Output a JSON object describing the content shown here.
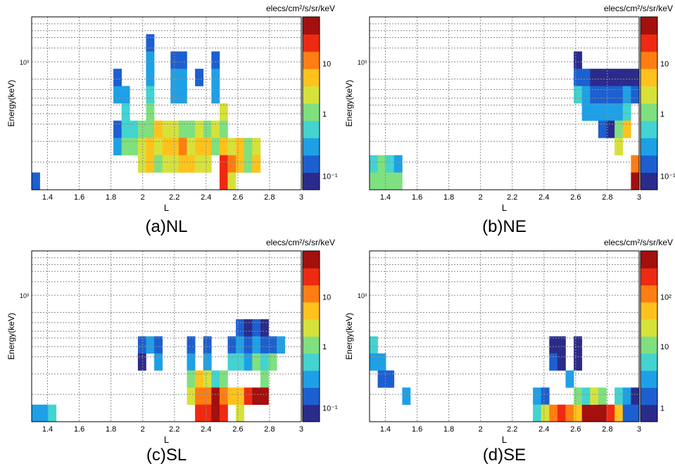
{
  "colors": {
    "grid": "#8c8c8c",
    "frame": "#000000",
    "scale": [
      "#2b2b8c",
      "#1c5fd1",
      "#1ea0e6",
      "#43d3d0",
      "#7fe07f",
      "#d6e23a",
      "#ffc21d",
      "#ff7d13",
      "#ee2a12",
      "#a3100e"
    ]
  },
  "chart_data": [
    {
      "type": "heatmap",
      "caption": "(a)NL",
      "xlabel": "L",
      "ylabel": "Energy(keV)",
      "colorbar_title": "elecs/cm²/s/sr/keV",
      "x_ticks": [
        "1.4",
        "1.6",
        "1.8",
        "2",
        "2.2",
        "2.4",
        "2.6",
        "2.8",
        "3"
      ],
      "y_tick_label": "10³",
      "colorbar_ticks": [
        "10",
        "1",
        "10⁻¹"
      ],
      "cells": [
        [
          0,
          0,
          0.1
        ],
        [
          10,
          3,
          0.15
        ],
        [
          10,
          2,
          0.2
        ],
        [
          10,
          5,
          0.2
        ],
        [
          10,
          6,
          0.15
        ],
        [
          11,
          5,
          0.3
        ],
        [
          11,
          4,
          0.4
        ],
        [
          11,
          3,
          0.6
        ],
        [
          11,
          2,
          1.2
        ],
        [
          12,
          3,
          0.6
        ],
        [
          12,
          2,
          1.5
        ],
        [
          13,
          1,
          2
        ],
        [
          13,
          2,
          3
        ],
        [
          13,
          3,
          1.5
        ],
        [
          14,
          8,
          0.12
        ],
        [
          14,
          7,
          0.2
        ],
        [
          14,
          6,
          0.3
        ],
        [
          14,
          5,
          0.5
        ],
        [
          14,
          4,
          0.8
        ],
        [
          14,
          3,
          1.5
        ],
        [
          14,
          2,
          4
        ],
        [
          14,
          1,
          6
        ],
        [
          15,
          2,
          2
        ],
        [
          15,
          3,
          4
        ],
        [
          15,
          1,
          1.5
        ],
        [
          16,
          3,
          2
        ],
        [
          16,
          2,
          5
        ],
        [
          16,
          1,
          3
        ],
        [
          17,
          7,
          0.15
        ],
        [
          17,
          6,
          0.2
        ],
        [
          17,
          5,
          0.3
        ],
        [
          17,
          3,
          3
        ],
        [
          17,
          2,
          6
        ],
        [
          17,
          1,
          2
        ],
        [
          18,
          7,
          0.12
        ],
        [
          18,
          6,
          0.2
        ],
        [
          18,
          5,
          0.25
        ],
        [
          18,
          3,
          1.5
        ],
        [
          18,
          2,
          8
        ],
        [
          18,
          1,
          4
        ],
        [
          19,
          3,
          1
        ],
        [
          19,
          2,
          3
        ],
        [
          19,
          1,
          6
        ],
        [
          20,
          6,
          0.12
        ],
        [
          20,
          3,
          2
        ],
        [
          20,
          2,
          5
        ],
        [
          20,
          1,
          2
        ],
        [
          21,
          3,
          1.5
        ],
        [
          21,
          2,
          4
        ],
        [
          21,
          1,
          3
        ],
        [
          22,
          7,
          0.15
        ],
        [
          22,
          6,
          0.2
        ],
        [
          22,
          5,
          0.3
        ],
        [
          22,
          3,
          2
        ],
        [
          22,
          2,
          1
        ],
        [
          23,
          4,
          2
        ],
        [
          23,
          3,
          1.5
        ],
        [
          23,
          2,
          5
        ],
        [
          23,
          1,
          15
        ],
        [
          23,
          0,
          25
        ],
        [
          24,
          2,
          3
        ],
        [
          24,
          1,
          8
        ],
        [
          24,
          0,
          2
        ],
        [
          25,
          2,
          4
        ],
        [
          25,
          1,
          6
        ],
        [
          26,
          2,
          1.5
        ],
        [
          26,
          1,
          0.8
        ],
        [
          27,
          2,
          3
        ],
        [
          27,
          1,
          5
        ]
      ]
    },
    {
      "type": "heatmap",
      "caption": "(b)NE",
      "xlabel": "L",
      "ylabel": "Energy(keV)",
      "colorbar_title": "elecs/cm²/s/sr/keV",
      "x_ticks": [
        "1.4",
        "1.6",
        "1.8",
        "2",
        "2.2",
        "2.4",
        "2.6",
        "2.8",
        "3"
      ],
      "y_tick_label": "10³",
      "colorbar_ticks": [
        "10",
        "1",
        "10⁻¹"
      ],
      "cells": [
        [
          0,
          1,
          0.5
        ],
        [
          0,
          0,
          0.8
        ],
        [
          1,
          1,
          0.6
        ],
        [
          1,
          0,
          0.8
        ],
        [
          2,
          1,
          0.4
        ],
        [
          2,
          0,
          1
        ],
        [
          3,
          1,
          0.3
        ],
        [
          3,
          0,
          0.8
        ],
        [
          25,
          7,
          0.05
        ],
        [
          25,
          6,
          0.1
        ],
        [
          25,
          5,
          0.4
        ],
        [
          26,
          6,
          0.1
        ],
        [
          26,
          5,
          0.2
        ],
        [
          26,
          4,
          0.3
        ],
        [
          27,
          6,
          0.08
        ],
        [
          27,
          5,
          0.15
        ],
        [
          27,
          4,
          0.25
        ],
        [
          28,
          6,
          0.06
        ],
        [
          28,
          5,
          0.1
        ],
        [
          28,
          4,
          0.2
        ],
        [
          28,
          3,
          0.1
        ],
        [
          29,
          6,
          0.05
        ],
        [
          29,
          5,
          0.12
        ],
        [
          29,
          4,
          0.3
        ],
        [
          29,
          3,
          0.08
        ],
        [
          30,
          6,
          0.05
        ],
        [
          30,
          5,
          0.15
        ],
        [
          30,
          4,
          0.2
        ],
        [
          30,
          3,
          0.8
        ],
        [
          30,
          2,
          2
        ],
        [
          31,
          6,
          0.06
        ],
        [
          31,
          5,
          0.2
        ],
        [
          31,
          4,
          0.5
        ],
        [
          31,
          3,
          3
        ],
        [
          32,
          6,
          0.08
        ],
        [
          32,
          5,
          0.12
        ],
        [
          32,
          1,
          5
        ],
        [
          32,
          0,
          15
        ]
      ]
    },
    {
      "type": "heatmap",
      "caption": "(c)SL",
      "xlabel": "L",
      "ylabel": "Energy(keV)",
      "colorbar_title": "elecs/cm²/s/sr/keV",
      "x_ticks": [
        "1.4",
        "1.6",
        "1.8",
        "2",
        "2.2",
        "2.4",
        "2.6",
        "2.8",
        "3"
      ],
      "y_tick_label": "10³",
      "colorbar_ticks": [
        "10",
        "1",
        "10⁻¹"
      ],
      "cells": [
        [
          0,
          0,
          0.2
        ],
        [
          1,
          0,
          0.25
        ],
        [
          2,
          0,
          0.3
        ],
        [
          13,
          4,
          0.1
        ],
        [
          13,
          3,
          0.08
        ],
        [
          14,
          4,
          0.2
        ],
        [
          15,
          4,
          0.15
        ],
        [
          15,
          3,
          0.2
        ],
        [
          19,
          4,
          0.15
        ],
        [
          19,
          3,
          0.25
        ],
        [
          19,
          2,
          0.5
        ],
        [
          19,
          1,
          1.5
        ],
        [
          20,
          2,
          2
        ],
        [
          20,
          1,
          3
        ],
        [
          20,
          0,
          6
        ],
        [
          21,
          4,
          0.1
        ],
        [
          21,
          3,
          0.2
        ],
        [
          21,
          2,
          1
        ],
        [
          21,
          1,
          5
        ],
        [
          21,
          0,
          8
        ],
        [
          22,
          2,
          0.3
        ],
        [
          22,
          1,
          10
        ],
        [
          22,
          0,
          20
        ],
        [
          23,
          2,
          0.5
        ],
        [
          23,
          1,
          3
        ],
        [
          23,
          0,
          6
        ],
        [
          24,
          4,
          0.15
        ],
        [
          24,
          3,
          0.3
        ],
        [
          24,
          1,
          2
        ],
        [
          25,
          5,
          0.1
        ],
        [
          25,
          4,
          0.2
        ],
        [
          25,
          3,
          0.3
        ],
        [
          25,
          1,
          2
        ],
        [
          25,
          0,
          1
        ],
        [
          26,
          5,
          0.08
        ],
        [
          26,
          4,
          0.15
        ],
        [
          26,
          3,
          0.2
        ],
        [
          26,
          1,
          8
        ],
        [
          27,
          5,
          0.1
        ],
        [
          27,
          4,
          0.2
        ],
        [
          27,
          3,
          0.8
        ],
        [
          27,
          1,
          15
        ],
        [
          28,
          5,
          0.06
        ],
        [
          28,
          4,
          0.1
        ],
        [
          28,
          3,
          0.3
        ],
        [
          28,
          2,
          0.5
        ],
        [
          28,
          1,
          10
        ],
        [
          29,
          4,
          0.15
        ],
        [
          29,
          3,
          0.5
        ],
        [
          30,
          4,
          0.2
        ]
      ]
    },
    {
      "type": "heatmap",
      "caption": "(d)SE",
      "xlabel": "L",
      "ylabel": "Energy(keV)",
      "colorbar_title": "elecs/cm²/s/sr/keV",
      "x_ticks": [
        "1.4",
        "1.6",
        "1.8",
        "2",
        "2.2",
        "2.4",
        "2.6",
        "2.8",
        "3"
      ],
      "y_tick_label": "10³",
      "colorbar_ticks": [
        "10²",
        "10",
        "1"
      ],
      "cells": [
        [
          0,
          4,
          3
        ],
        [
          0,
          3,
          2
        ],
        [
          1,
          3,
          1.5
        ],
        [
          1,
          2,
          0.8
        ],
        [
          2,
          2,
          1
        ],
        [
          4,
          1,
          1.5
        ],
        [
          20,
          1,
          1.5
        ],
        [
          20,
          0,
          3
        ],
        [
          21,
          1,
          1
        ],
        [
          21,
          0,
          10
        ],
        [
          22,
          4,
          0.5
        ],
        [
          22,
          3,
          0.8
        ],
        [
          22,
          0,
          50
        ],
        [
          23,
          4,
          0.3
        ],
        [
          23,
          3,
          0.5
        ],
        [
          23,
          0,
          80
        ],
        [
          24,
          2,
          2
        ],
        [
          24,
          0,
          40
        ],
        [
          25,
          4,
          0.4
        ],
        [
          25,
          3,
          0.6
        ],
        [
          25,
          1,
          8
        ],
        [
          25,
          0,
          20
        ],
        [
          26,
          0,
          150
        ],
        [
          26,
          1,
          5
        ],
        [
          27,
          0,
          200
        ],
        [
          27,
          1,
          10
        ],
        [
          28,
          1,
          6
        ],
        [
          28,
          0,
          150
        ],
        [
          29,
          0,
          80
        ],
        [
          30,
          1,
          3
        ],
        [
          30,
          0,
          20
        ],
        [
          31,
          1,
          2
        ],
        [
          31,
          0,
          0.8
        ],
        [
          32,
          1,
          0.6
        ],
        [
          32,
          0,
          0.7
        ]
      ]
    }
  ]
}
